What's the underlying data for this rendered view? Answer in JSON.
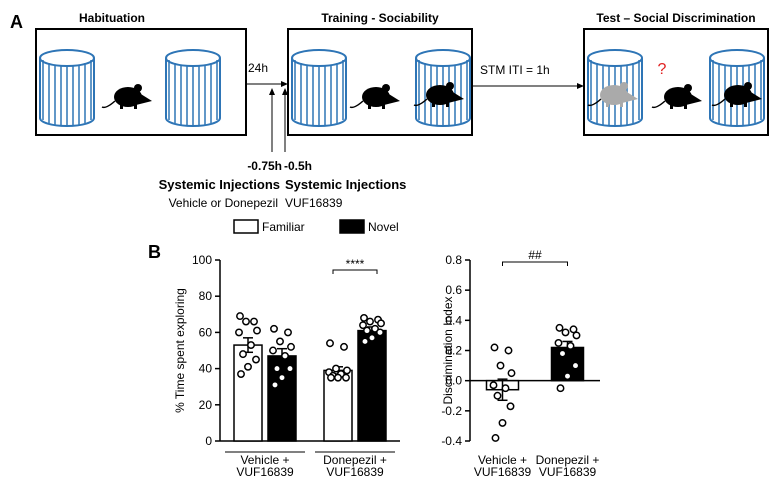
{
  "diagram": {
    "panel_a": "A",
    "panel_b": "B",
    "stages": [
      "Habituation",
      "Training - Sociability",
      "Test – Social Discrimination"
    ],
    "interval_1": "24h",
    "interval_2": "STM ITI  = 1h",
    "question": "?",
    "injections": [
      {
        "time": "-0.75h",
        "title": "Systemic Injections",
        "drug": "Vehicle or Donepezil"
      },
      {
        "time": "-0.5h",
        "title": "Systemic Injections",
        "drug": "VUF16839"
      }
    ]
  },
  "chart_data": [
    {
      "type": "bar",
      "ylabel": "% Time spent exploring",
      "categories": [
        [
          "Vehicle +",
          "VUF16839"
        ],
        [
          "Donepezil +",
          "VUF16839"
        ]
      ],
      "series": [
        {
          "name": "Familiar",
          "color": "#ffffff",
          "values": [
            53,
            39
          ],
          "errors": [
            4,
            2
          ],
          "points": [
            [
              69,
              66,
              66,
              61,
              60,
              53,
              48,
              45,
              41,
              37
            ],
            [
              54,
              52,
              40,
              39,
              38,
              37,
              36,
              35,
              35,
              35
            ]
          ]
        },
        {
          "name": "Novel",
          "color": "#000000",
          "values": [
            47,
            61
          ],
          "errors": [
            4,
            2
          ],
          "points": [
            [
              62,
              60,
              55,
              52,
              50,
              47,
              40,
              40,
              35,
              31
            ],
            [
              68,
              67,
              66,
              65,
              64,
              62,
              61,
              60,
              57,
              55
            ]
          ]
        }
      ],
      "annotation": "****",
      "ylim": [
        0,
        100
      ],
      "yticks": [
        0,
        20,
        40,
        60,
        80,
        100
      ]
    },
    {
      "type": "bar",
      "ylabel": "Discrimination Index",
      "categories": [
        [
          "Vehicle +",
          "VUF16839"
        ],
        [
          "Donepezil +",
          "VUF16839"
        ]
      ],
      "values": [
        -0.06,
        0.22
      ],
      "errors": [
        0.07,
        0.04
      ],
      "colors": [
        "#ffffff",
        "#000000"
      ],
      "points": [
        [
          0.22,
          0.2,
          0.1,
          0.05,
          -0.03,
          -0.05,
          -0.1,
          -0.17,
          -0.28,
          -0.38
        ],
        [
          0.35,
          0.34,
          0.32,
          0.3,
          0.25,
          0.23,
          0.18,
          0.1,
          0.03,
          -0.05
        ]
      ],
      "annotation": "##",
      "ylim": [
        -0.4,
        0.8
      ],
      "yticks": [
        -0.4,
        -0.2,
        {
          "value": 0,
          "label": "0.0"
        },
        0.2,
        0.4,
        0.6,
        0.8
      ]
    }
  ]
}
